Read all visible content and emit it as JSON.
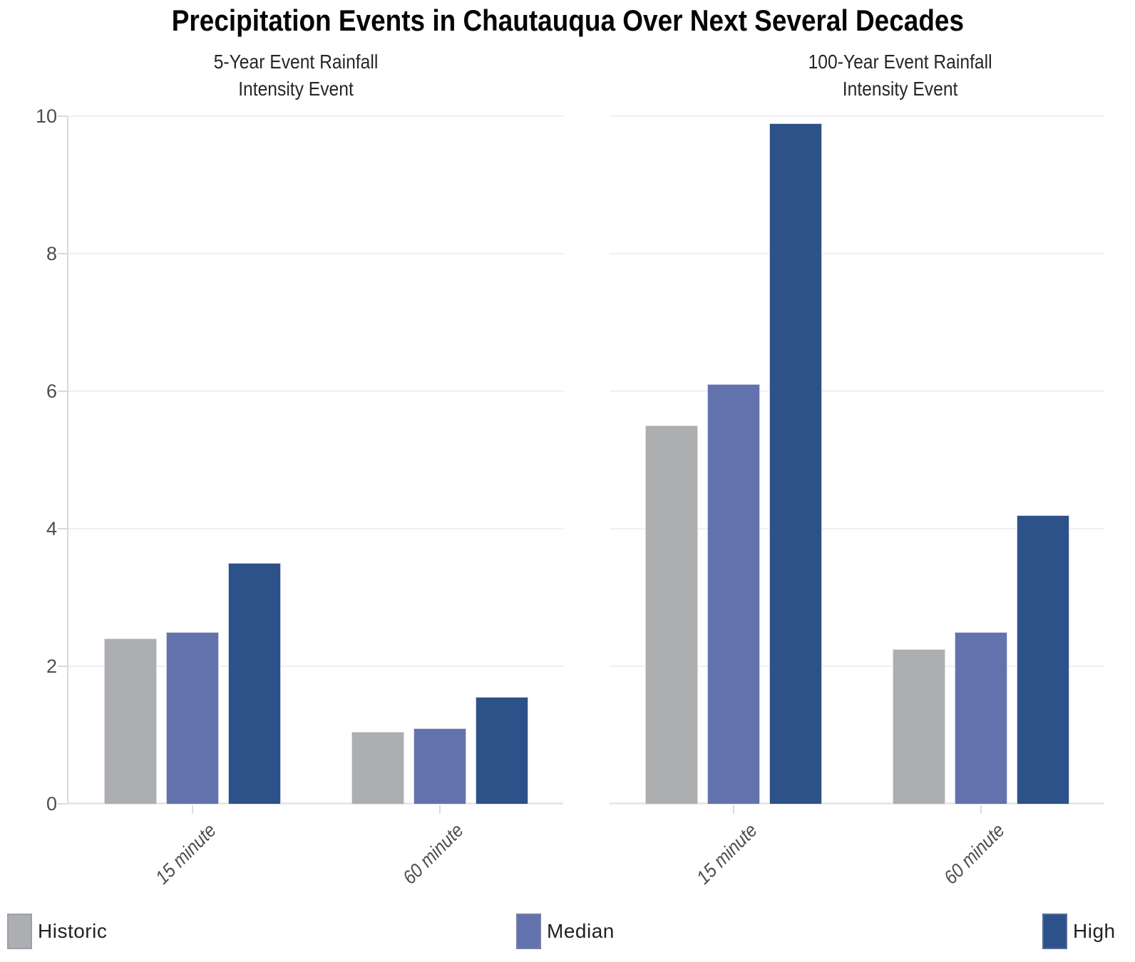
{
  "title": "Precipitation Events in Chautauqua Over Next Several Decades",
  "chart_data": [
    {
      "type": "bar",
      "title": "5-Year Event Rainfall\nIntensity Event",
      "categories": [
        "15 minute",
        "60 minute"
      ],
      "series": [
        {
          "name": "Historic",
          "color": "#ADAEB0",
          "values": [
            2.4,
            1.05
          ]
        },
        {
          "name": "Median",
          "color": "#6272AC",
          "values": [
            2.5,
            1.1
          ]
        },
        {
          "name": "High",
          "color": "#2D5189",
          "values": [
            3.5,
            1.55
          ]
        }
      ],
      "ylim": [
        0,
        10
      ],
      "yticks": [
        0,
        2,
        4,
        6,
        8,
        10
      ],
      "grid": true,
      "y_axis_visible": true,
      "legend_position": "bottom"
    },
    {
      "type": "bar",
      "title": "100-Year Event Rainfall\nIntensity Event",
      "categories": [
        "15 minute",
        "60 minute"
      ],
      "series": [
        {
          "name": "Historic",
          "color": "#ADAEB0",
          "values": [
            5.5,
            2.25
          ]
        },
        {
          "name": "Median",
          "color": "#6272AC",
          "values": [
            6.1,
            2.5
          ]
        },
        {
          "name": "High",
          "color": "#2D5189",
          "values": [
            9.9,
            4.2
          ]
        }
      ],
      "ylim": [
        0,
        10
      ],
      "yticks": [
        0,
        2,
        4,
        6,
        8,
        10
      ],
      "grid": true,
      "y_axis_visible": false,
      "legend_position": "bottom"
    }
  ],
  "legend": {
    "items": [
      {
        "label": "Historic",
        "color": "#ADAEB0"
      },
      {
        "label": "Median",
        "color": "#6272AC"
      },
      {
        "label": "High",
        "color": "#2D5189"
      }
    ]
  },
  "colors": {
    "historic": "#ADAEB0",
    "median": "#6272AC",
    "high": "#2D5189",
    "gridline": "#F0F0F0",
    "axis_line": "#D9D9D9",
    "axis_text": "#4D4D4D",
    "title_text": "#050505"
  }
}
